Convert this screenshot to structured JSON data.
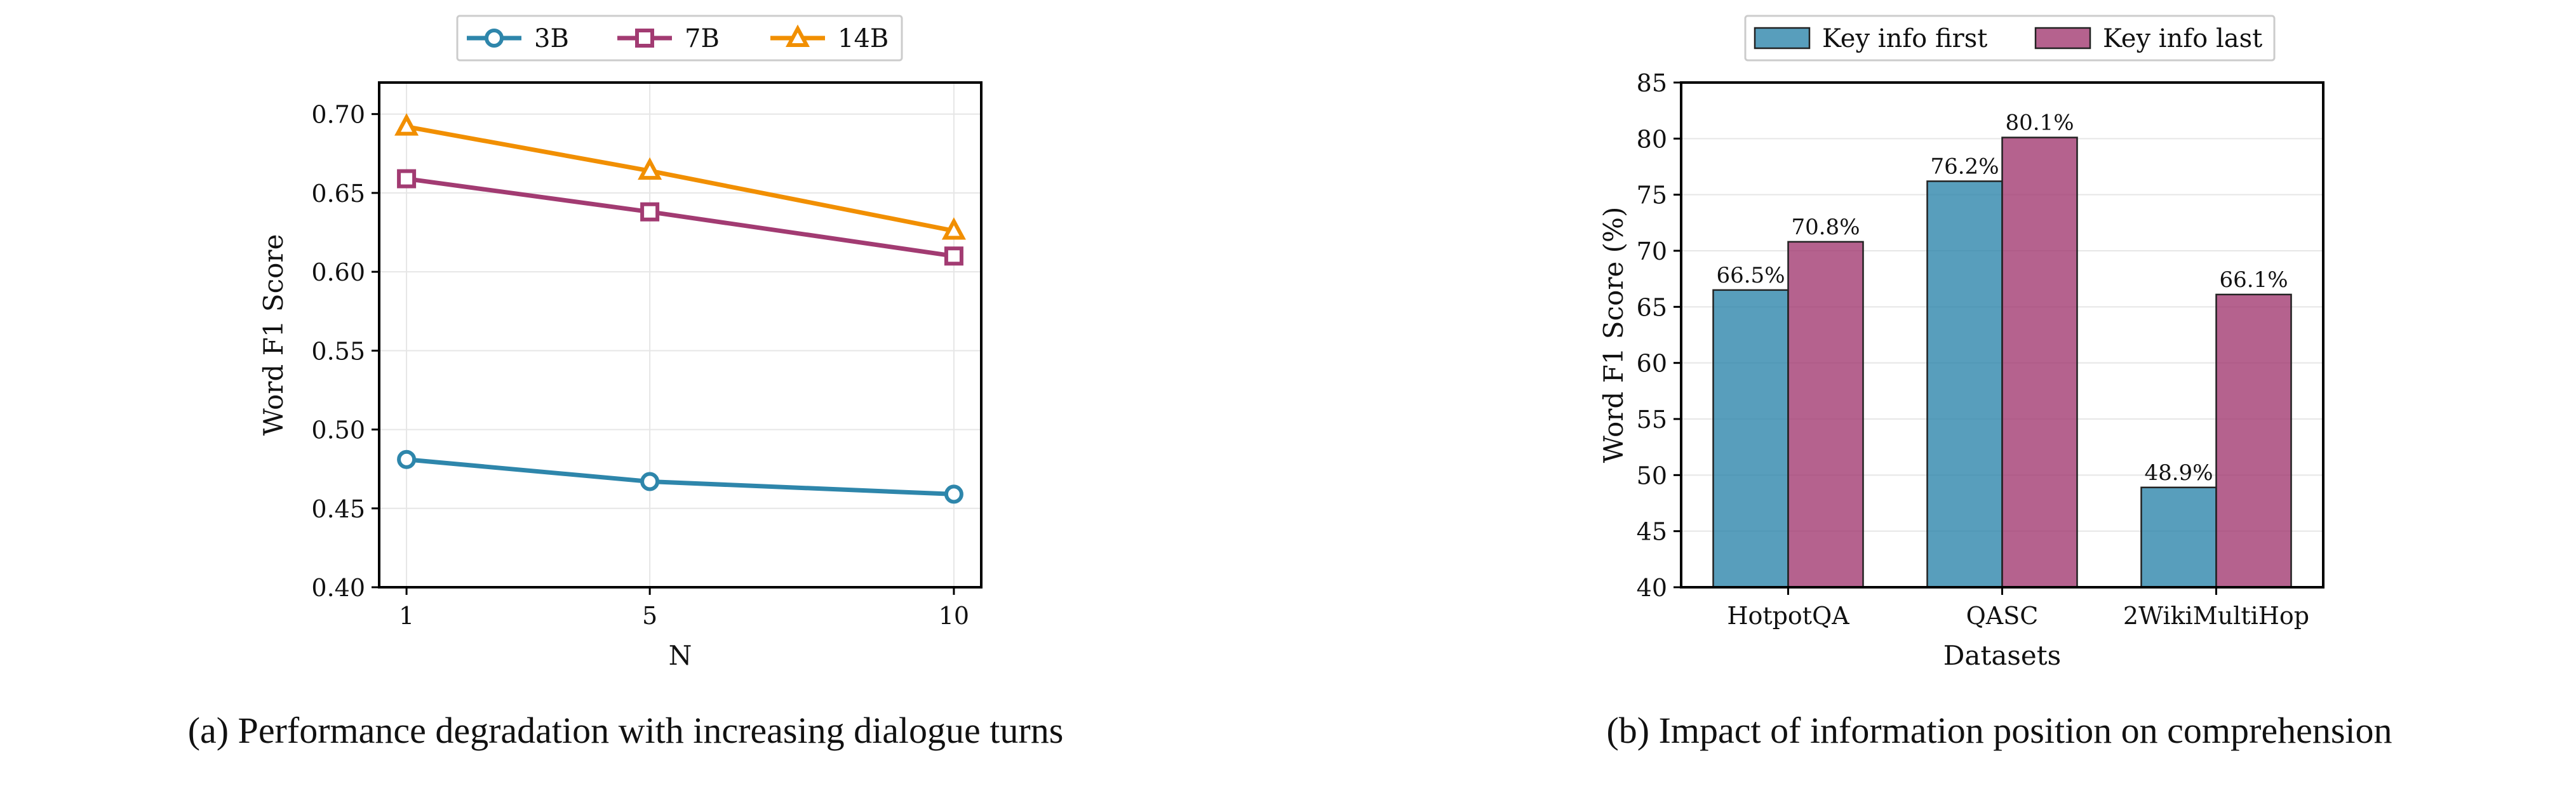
{
  "figure": {
    "caption_a": "(a) Performance degradation with increasing dialogue turns",
    "caption_b": "(b) Impact of information position on comprehension"
  },
  "chart_data": [
    {
      "type": "line",
      "title": "",
      "xlabel": "N",
      "ylabel": "Word F1 Score",
      "x": [
        1,
        5,
        10
      ],
      "x_ticks": [
        "1",
        "5",
        "10"
      ],
      "ylim": [
        0.4,
        0.72
      ],
      "y_ticks": [
        "0.40",
        "0.45",
        "0.50",
        "0.55",
        "0.60",
        "0.65",
        "0.70"
      ],
      "grid": true,
      "legend_position": "top-center",
      "series": [
        {
          "name": "3B",
          "values": [
            0.481,
            0.467,
            0.459
          ],
          "color": "#2e86ab",
          "marker": "circle"
        },
        {
          "name": "7B",
          "values": [
            0.659,
            0.638,
            0.61
          ],
          "color": "#a23b72",
          "marker": "square"
        },
        {
          "name": "14B",
          "values": [
            0.692,
            0.664,
            0.626
          ],
          "color": "#f18f01",
          "marker": "triangle"
        }
      ]
    },
    {
      "type": "bar",
      "title": "",
      "xlabel": "Datasets",
      "ylabel": "Word F1 Score (%)",
      "categories": [
        "HotpotQA",
        "QASC",
        "2WikiMultiHop"
      ],
      "ylim": [
        40,
        85
      ],
      "y_ticks": [
        "40",
        "45",
        "50",
        "55",
        "60",
        "65",
        "70",
        "75",
        "80",
        "85"
      ],
      "grid": true,
      "legend_position": "top-center",
      "series": [
        {
          "name": "Key info first",
          "values": [
            66.5,
            76.2,
            48.9
          ],
          "labels": [
            "66.5%",
            "76.2%",
            "48.9%"
          ],
          "color": "#2e86ab"
        },
        {
          "name": "Key info last",
          "values": [
            70.8,
            80.1,
            66.1
          ],
          "labels": [
            "70.8%",
            "80.1%",
            "66.1%"
          ],
          "color": "#a23b72"
        }
      ]
    }
  ]
}
